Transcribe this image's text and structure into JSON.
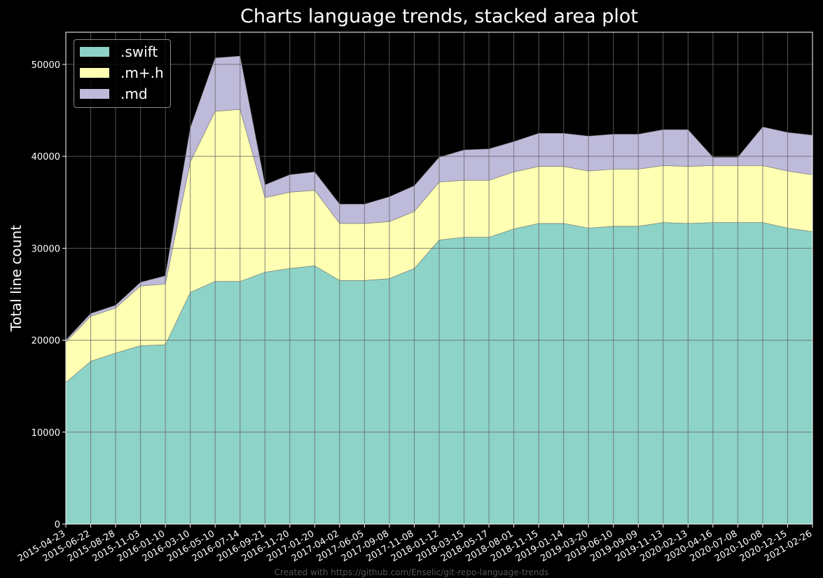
{
  "chart_data": {
    "type": "area",
    "stacked": true,
    "title": "Charts language trends, stacked area plot",
    "xlabel": "",
    "ylabel": "Total line count",
    "ylim": [
      0,
      53500
    ],
    "yticks": [
      0,
      10000,
      20000,
      30000,
      40000,
      50000
    ],
    "grid": true,
    "legend_position": "upper left",
    "categories": [
      "2015-04-23",
      "2015-06-22",
      "2015-08-28",
      "2015-11-03",
      "2016-01-10",
      "2016-03-10",
      "2016-05-10",
      "2016-07-14",
      "2016-09-21",
      "2016-11-20",
      "2017-01-20",
      "2017-04-02",
      "2017-06-05",
      "2017-09-08",
      "2017-11-08",
      "2018-01-12",
      "2018-03-15",
      "2018-05-17",
      "2018-08-01",
      "2018-11-15",
      "2019-01-14",
      "2019-03-20",
      "2019-06-10",
      "2019-09-09",
      "2019-11-13",
      "2020-02-13",
      "2020-04-16",
      "2020-07-08",
      "2020-10-08",
      "2020-12-15",
      "2021-02-26"
    ],
    "series": [
      {
        "name": ".swift",
        "color": "#8dd3c7",
        "values": [
          15400,
          17700,
          18600,
          19400,
          19500,
          25200,
          26400,
          26400,
          27400,
          27800,
          28100,
          26500,
          26500,
          26700,
          27800,
          30900,
          31200,
          31200,
          32100,
          32700,
          32700,
          32200,
          32400,
          32400,
          32800,
          32700,
          32800,
          32800,
          32800,
          32200,
          31800
        ]
      },
      {
        "name": ".m+.h",
        "color": "#ffffb3",
        "values": [
          4400,
          4900,
          4900,
          6500,
          6600,
          14200,
          18500,
          18700,
          8100,
          8300,
          8200,
          6200,
          6200,
          6200,
          6200,
          6300,
          6200,
          6200,
          6200,
          6200,
          6200,
          6200,
          6200,
          6200,
          6200,
          6200,
          6200,
          6200,
          6200,
          6200,
          6200
        ]
      },
      {
        "name": ".md",
        "color": "#bebada",
        "values": [
          200,
          300,
          300,
          400,
          900,
          3700,
          5800,
          5800,
          1400,
          1900,
          2000,
          2100,
          2100,
          2700,
          2800,
          2700,
          3300,
          3400,
          3300,
          3600,
          3600,
          3800,
          3800,
          3800,
          3900,
          4000,
          900,
          900,
          4200,
          4200,
          4300
        ]
      }
    ],
    "credit": "Created with https://github.com/Enselic/git-repo-language-trends"
  }
}
